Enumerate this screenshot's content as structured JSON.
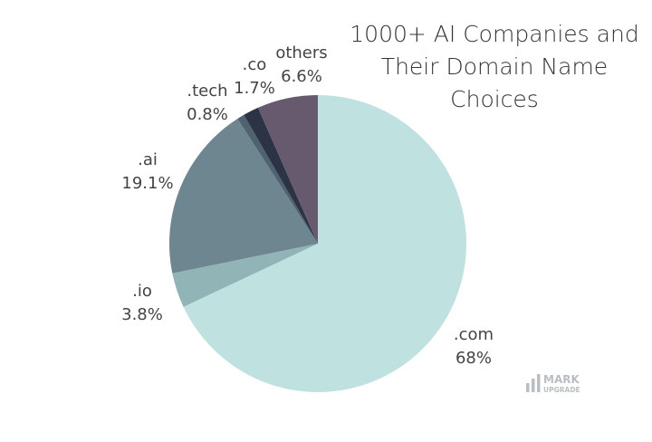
{
  "chart_data": {
    "type": "pie",
    "title": "1000+ AI Companies and Their Domain Name Choices",
    "title_lines": [
      "1000+ AI Companies and",
      "Their Domain Name",
      "Choices"
    ],
    "slices": [
      {
        "name": ".com",
        "value": 68,
        "label": ".com",
        "value_label": "68%",
        "color": "#bfe2e0"
      },
      {
        "name": ".io",
        "value": 3.8,
        "label": ".io",
        "value_label": "3.8%",
        "color": "#91b4b6"
      },
      {
        "name": ".ai",
        "value": 19.1,
        "label": ".ai",
        "value_label": "19.1%",
        "color": "#6d8690"
      },
      {
        "name": ".tech",
        "value": 0.8,
        "label": ".tech",
        "value_label": "0.8%",
        "color": "#4e6270"
      },
      {
        "name": ".co",
        "value": 1.7,
        "label": ".co",
        "value_label": "1.7%",
        "color": "#2b3345"
      },
      {
        "name": "others",
        "value": 6.6,
        "label": "others",
        "value_label": "6.6%",
        "color": "#685a6e"
      }
    ],
    "start_angle_deg": 0,
    "direction": "clockwise"
  },
  "watermark": {
    "line1": "MARK",
    "line2": "UPGRADE",
    "color": "#b9bec2"
  }
}
